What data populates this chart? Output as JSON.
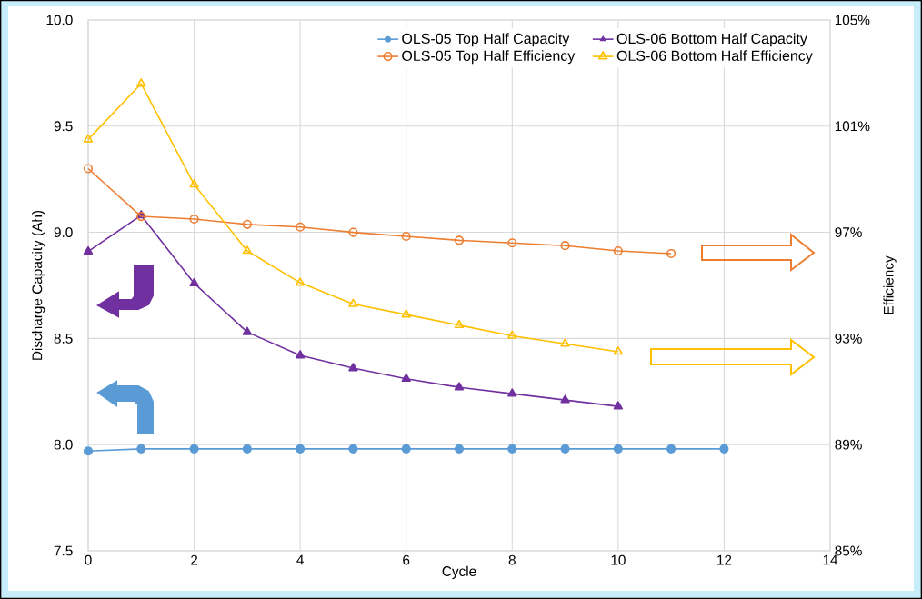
{
  "chart_data": {
    "type": "line",
    "xlabel": "Cycle",
    "ylabel": "Discharge Capacity (Ah)",
    "y2label": "Efficiency",
    "xlim": [
      0,
      14
    ],
    "xticks": [
      0,
      2,
      4,
      6,
      8,
      10,
      12,
      14
    ],
    "ylim": [
      7.5,
      10
    ],
    "yticks": [
      {
        "value": 7.5,
        "label": "7.5"
      },
      {
        "value": 8,
        "label": "8.0"
      },
      {
        "value": 8.5,
        "label": "8.5"
      },
      {
        "value": 9,
        "label": "9.0"
      },
      {
        "value": 9.5,
        "label": "9.5"
      },
      {
        "value": 10,
        "label": "10.0"
      }
    ],
    "y2lim": [
      85,
      105
    ],
    "y2ticks": [
      {
        "value": 85,
        "label": "85%"
      },
      {
        "value": 89,
        "label": "89%"
      },
      {
        "value": 93,
        "label": "93%"
      },
      {
        "value": 97,
        "label": "97%"
      },
      {
        "value": 101,
        "label": "101%"
      },
      {
        "value": 105,
        "label": "105%"
      }
    ],
    "grid": true,
    "legend": "top right",
    "line_style": "solid",
    "series": [
      {
        "name": "OLS-05 Top Half Capacity",
        "color": "#5b9bd5",
        "marker": "circle",
        "x": [
          0,
          1,
          2,
          3,
          4,
          5,
          6,
          7,
          8,
          9,
          10,
          11,
          12
        ],
        "values": [
          7.97,
          7.98,
          7.98,
          7.98,
          7.98,
          7.98,
          7.98,
          7.98,
          7.98,
          7.98,
          7.98,
          7.98,
          7.98
        ]
      },
      {
        "name": "OLS-06 Bottom Half Capacity",
        "color": "#7030a0",
        "marker": "triangle",
        "x": [
          0,
          1,
          2,
          3,
          4,
          5,
          6,
          7,
          8,
          9,
          10
        ],
        "values": [
          8.91,
          9.08,
          8.76,
          8.53,
          8.42,
          8.36,
          8.31,
          8.27,
          8.24,
          8.21,
          8.18
        ]
      },
      {
        "name": "OLS-05 Top Half Efficiency",
        "color": "#ed7d31",
        "marker": "circle",
        "axis": "y2",
        "x": [
          0,
          1,
          2,
          3,
          4,
          5,
          6,
          7,
          8,
          9,
          10,
          11
        ],
        "values": [
          99.4,
          97.6,
          97.5,
          97.3,
          97.2,
          97.0,
          96.85,
          96.7,
          96.6,
          96.5,
          96.3,
          96.2
        ]
      },
      {
        "name": "OLS-06 Bottom Half Efficiency",
        "color": "#ffc000",
        "marker": "triangle",
        "axis": "y2",
        "x": [
          0,
          1,
          2,
          3,
          4,
          5,
          6,
          7,
          8,
          9,
          10
        ],
        "values": [
          100.5,
          102.6,
          98.8,
          96.3,
          95.1,
          94.3,
          93.9,
          93.5,
          93.1,
          92.8,
          92.5
        ]
      }
    ]
  }
}
